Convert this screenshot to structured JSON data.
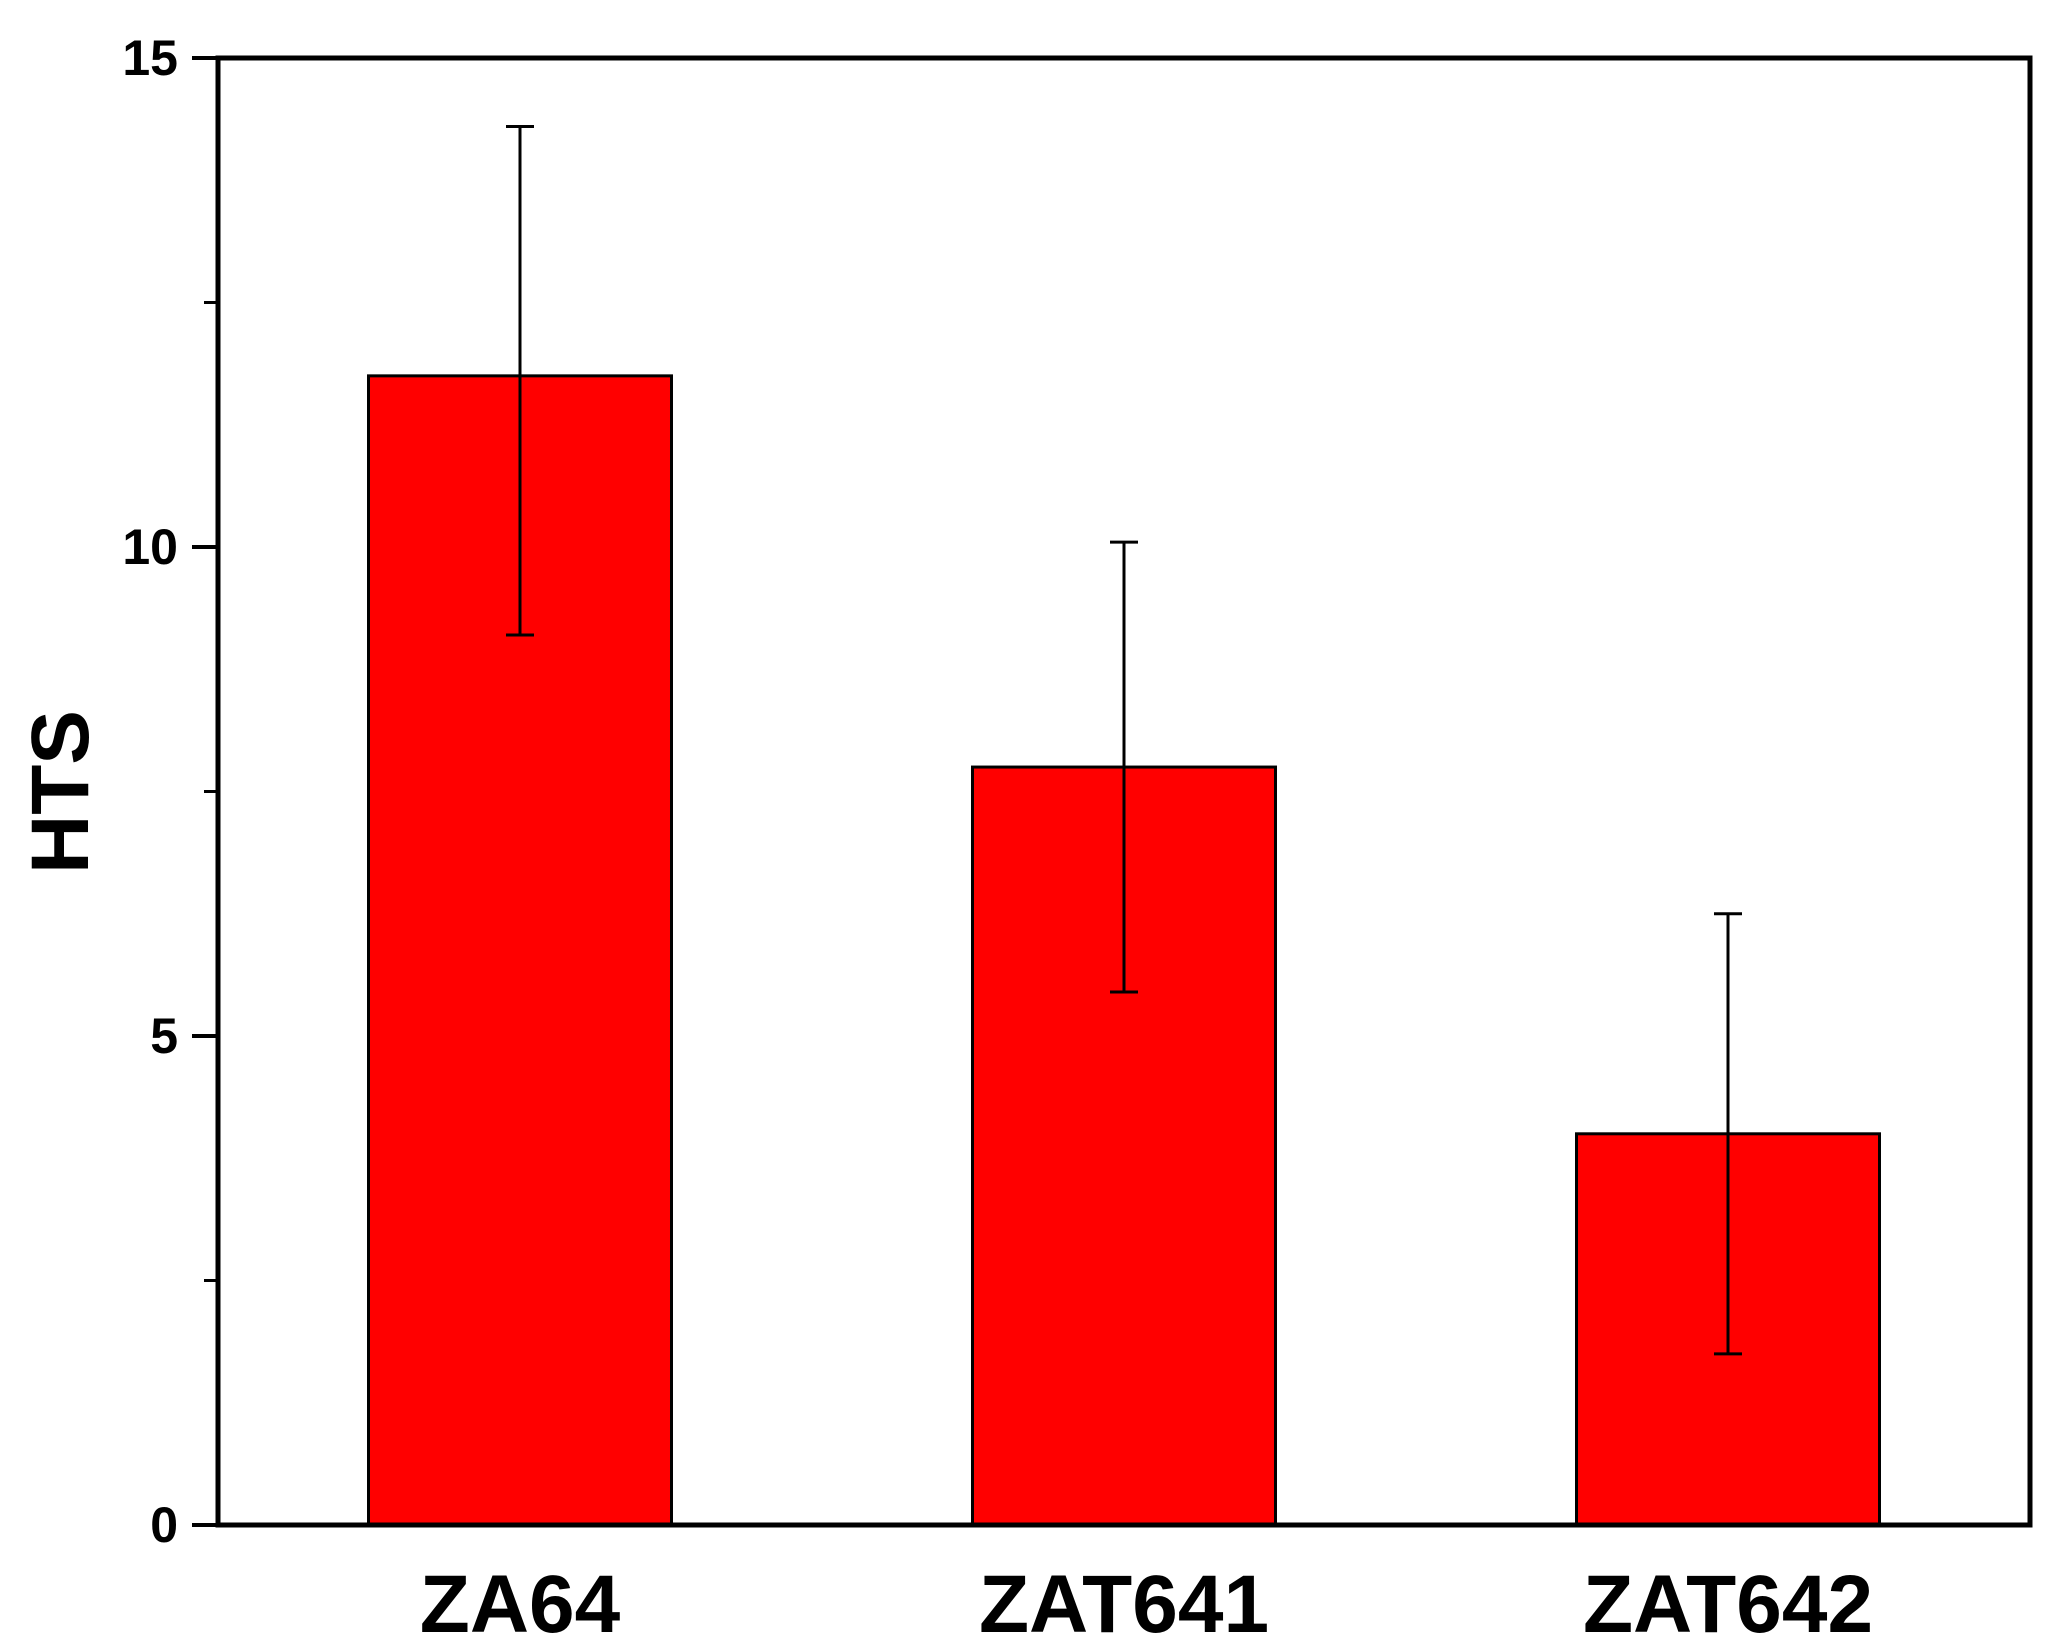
{
  "chart_data": {
    "type": "bar",
    "title": "",
    "xlabel": "",
    "ylabel": "HTS",
    "ylim": [
      0,
      15
    ],
    "yticks": [
      0,
      5,
      10,
      15
    ],
    "yminor_ticks": [
      2.5,
      7.5,
      12.5
    ],
    "categories": [
      "ZA64",
      "ZAT641",
      "ZAT642"
    ],
    "values": [
      11.75,
      7.75,
      4.0
    ],
    "errors": [
      {
        "low": 9.1,
        "high": 14.3
      },
      {
        "low": 5.45,
        "high": 10.05
      },
      {
        "low": 1.75,
        "high": 6.25
      }
    ],
    "bar_color": "#ff0000",
    "grid": false,
    "legend": "none"
  }
}
